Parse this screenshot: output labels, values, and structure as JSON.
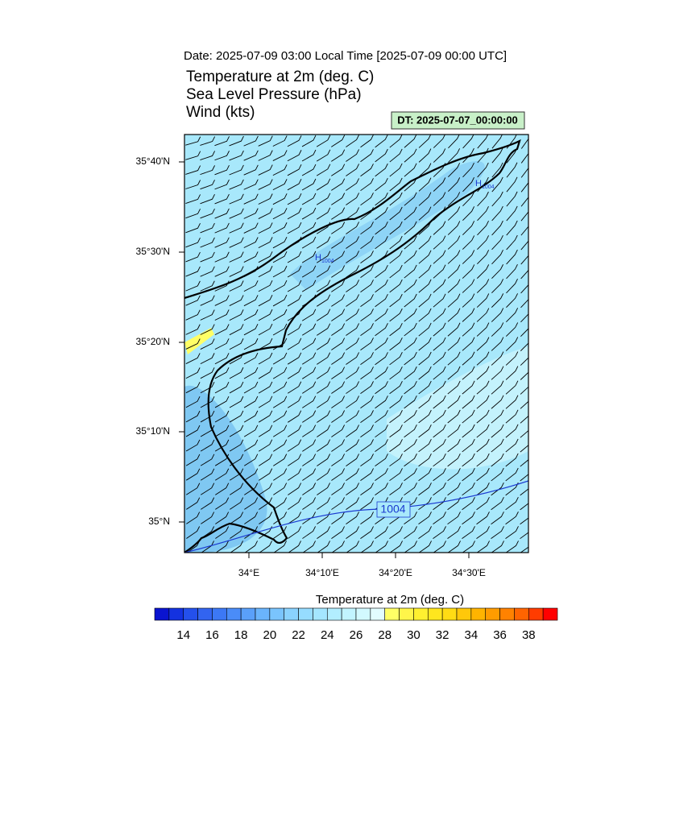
{
  "header": {
    "date_line": "Date: 2025-07-09  03:00 Local Time [2025-07-09  00:00 UTC]",
    "fields": [
      "Temperature at 2m   (deg. C)",
      "Sea Level Pressure   (hPa)",
      "Wind   (kts)"
    ],
    "dt_label": "DT: 2025-07-07_00:00:00"
  },
  "map": {
    "lat_labels": [
      "35°40'N",
      "35°30'N",
      "35°20'N",
      "35°10'N",
      "35°N"
    ],
    "lon_labels": [
      "34°E",
      "34°10'E",
      "34°20'E",
      "34°30'E"
    ],
    "contour_label": "1004",
    "highs": [
      {
        "symbol": "H",
        "value": "1004"
      },
      {
        "symbol": "H",
        "value": "1004"
      }
    ]
  },
  "colorbar": {
    "title": "Temperature at 2m  (deg. C)",
    "labels": [
      14,
      16,
      18,
      20,
      22,
      24,
      26,
      28,
      30,
      32,
      34,
      36,
      38
    ],
    "colors": [
      "#0a14d0",
      "#1432e0",
      "#2450ec",
      "#3264f0",
      "#3c78f5",
      "#4a8cf8",
      "#5aa0fa",
      "#6ab4fc",
      "#7ac4fd",
      "#8ad2fe",
      "#96dcff",
      "#a4e6ff",
      "#b2eeff",
      "#c2f4ff",
      "#d2f9ff",
      "#e2fcff",
      "#ffff66",
      "#fff54a",
      "#fff030",
      "#ffe61e",
      "#ffdc14",
      "#ffc80a",
      "#ffb400",
      "#ff9c00",
      "#ff8200",
      "#ff6400",
      "#ff3c00",
      "#ff0000"
    ]
  }
}
